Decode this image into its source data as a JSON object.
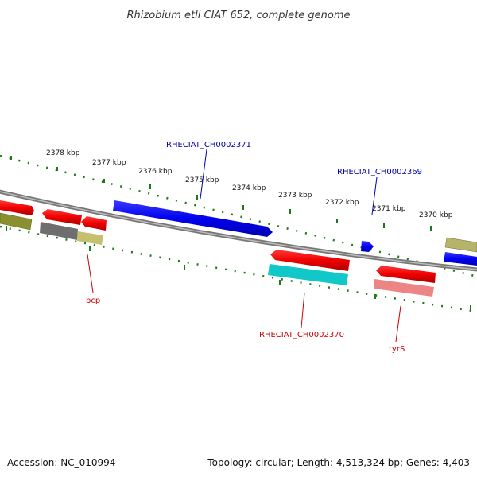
{
  "title": "Rhizobium etli CIAT 652, complete genome",
  "scale_labels": [
    "2378 kbp",
    "2377 kbp",
    "2376 kbp",
    "2375 kbp",
    "2374 kbp",
    "2373 kbp",
    "2372 kbp",
    "2371 kbp",
    "2370 kbp"
  ],
  "gene_labels": [
    {
      "text": "RHECIAT_CH0002371",
      "color": "#0000aa"
    },
    {
      "text": "RHECIAT_CH0002369",
      "color": "#0000aa"
    },
    {
      "text": "bcp",
      "color": "#cc0000"
    },
    {
      "text": "RHECIAT_CH0002370",
      "color": "#cc0000"
    },
    {
      "text": "tyrS",
      "color": "#cc0000"
    }
  ],
  "footer": {
    "accession": "Accession: NC_010994",
    "info": "Topology: circular; Length: 4,513,324 bp; Genes: 4,403"
  },
  "colors": {
    "forward_cds": "#0000ee",
    "reverse_cds": "#ee0000",
    "backbone": "#888888",
    "scale_ticks": "#1a7a1a",
    "cyan_feature": "#00c8c8",
    "pink_feature": "#ee8080",
    "olive_feature": "#9aa040",
    "gray_feature": "#777777",
    "tan_feature": "#c8c070"
  }
}
